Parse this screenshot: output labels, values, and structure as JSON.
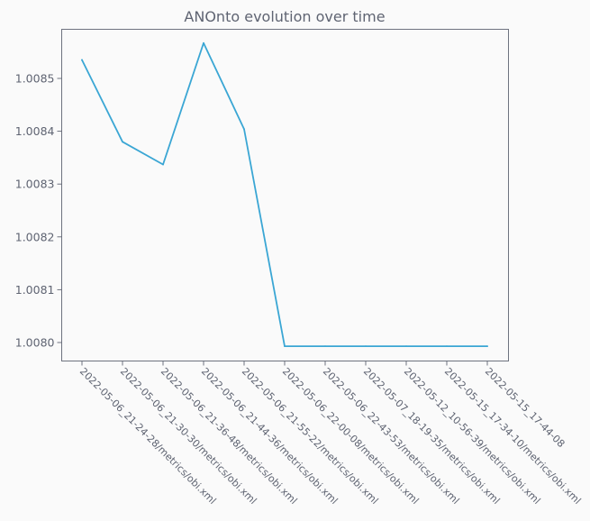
{
  "chart_data": {
    "type": "line",
    "title": "ANOnto evolution over time",
    "xlabel": "",
    "ylabel": "",
    "categories": [
      "2022-05-06_21-24-28/metrics/obi.xml",
      "2022-05-06_21-30-30/metrics/obi.xml",
      "2022-05-06_21-36-48/metrics/obi.xml",
      "2022-05-06_21-44-36/metrics/obi.xml",
      "2022-05-06_21-55-22/metrics/obi.xml",
      "2022-05-06_22-00-08/metrics/obi.xml",
      "2022-05-06_22-43-53/metrics/obi.xml",
      "2022-05-07_18-19-35/metrics/obi.xml",
      "2022-05-12_10-56-39/metrics/obi.xml",
      "2022-05-15_17-34-10/metrics/obi.xml",
      "2022-05-15_17-44-08"
    ],
    "series": [
      {
        "color": "#3aa6d4",
        "values": [
          1.008535,
          1.00838,
          1.008337,
          1.008567,
          1.008404,
          1.007993,
          1.007993,
          1.007993,
          1.007993,
          1.007993,
          1.007993
        ]
      }
    ],
    "ylim": [
      1.007965,
      1.008593
    ],
    "y_ticks": [
      {
        "value": 1.008,
        "label": "1.0080"
      },
      {
        "value": 1.0081,
        "label": "1.0081"
      },
      {
        "value": 1.0082,
        "label": "1.0082"
      },
      {
        "value": 1.0083,
        "label": "1.0083"
      },
      {
        "value": 1.0084,
        "label": "1.0084"
      },
      {
        "value": 1.0085,
        "label": "1.0085"
      }
    ],
    "grid": false,
    "legend": "none"
  }
}
